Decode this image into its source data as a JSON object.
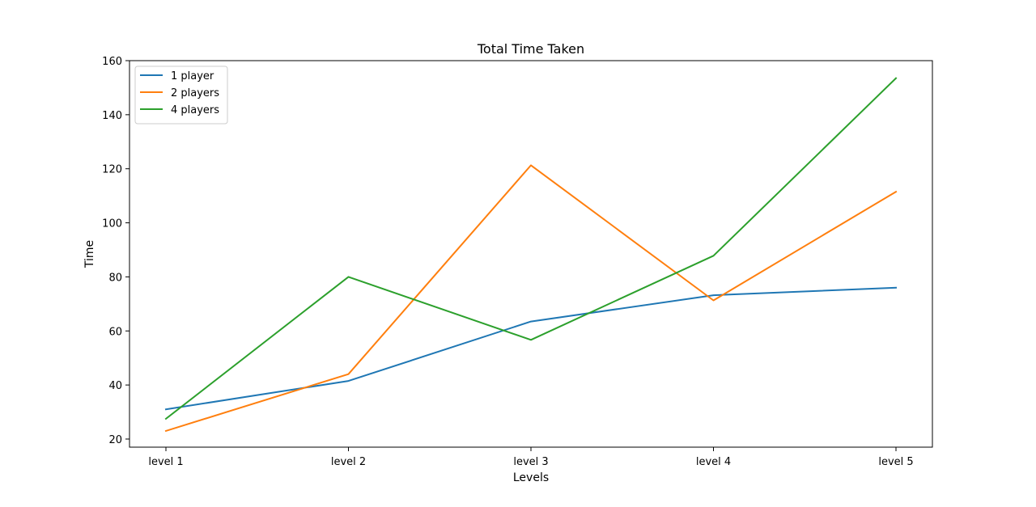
{
  "chart_data": {
    "type": "line",
    "title": "Total Time Taken",
    "xlabel": "Levels",
    "ylabel": "Time",
    "categories": [
      "level 1",
      "level 2",
      "level 3",
      "level 4",
      "level 5"
    ],
    "ylim": [
      17,
      160
    ],
    "yticks": [
      20,
      40,
      60,
      80,
      100,
      120,
      140,
      160
    ],
    "grid": false,
    "legend_position": "upper-left",
    "series": [
      {
        "name": "1 player",
        "color": "#1f77b4",
        "values": [
          31,
          41.5,
          63.5,
          73.2,
          76
        ]
      },
      {
        "name": "2 players",
        "color": "#ff7f0e",
        "values": [
          23,
          44,
          121.3,
          71.3,
          111.5
        ]
      },
      {
        "name": "4 players",
        "color": "#2ca02c",
        "values": [
          27.5,
          80,
          56.7,
          87.8,
          153.5
        ]
      }
    ]
  }
}
